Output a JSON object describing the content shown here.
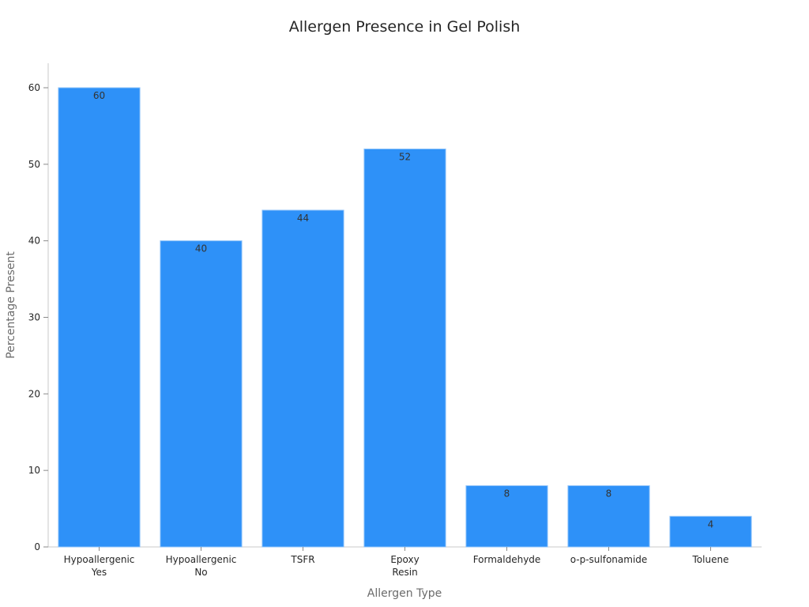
{
  "chart_data": {
    "type": "bar",
    "title": "Allergen Presence in Gel Polish",
    "xlabel": "Allergen Type",
    "ylabel": "Percentage Present",
    "categories": [
      [
        "Hypoallergenic",
        "Yes"
      ],
      [
        "Hypoallergenic",
        "No"
      ],
      [
        "TSFR"
      ],
      [
        "Epoxy",
        "Resin"
      ],
      [
        "Formaldehyde"
      ],
      [
        "o-p-sulfonamide"
      ],
      [
        "Toluene"
      ]
    ],
    "values": [
      60,
      40,
      44,
      52,
      8,
      8,
      4
    ],
    "ylim": [
      0,
      63
    ],
    "yticks": [
      0,
      10,
      20,
      30,
      40,
      50,
      60
    ],
    "grid": false,
    "colors": {
      "bar": "#2e91f8",
      "bar_edge": "#8fc3fa"
    }
  }
}
